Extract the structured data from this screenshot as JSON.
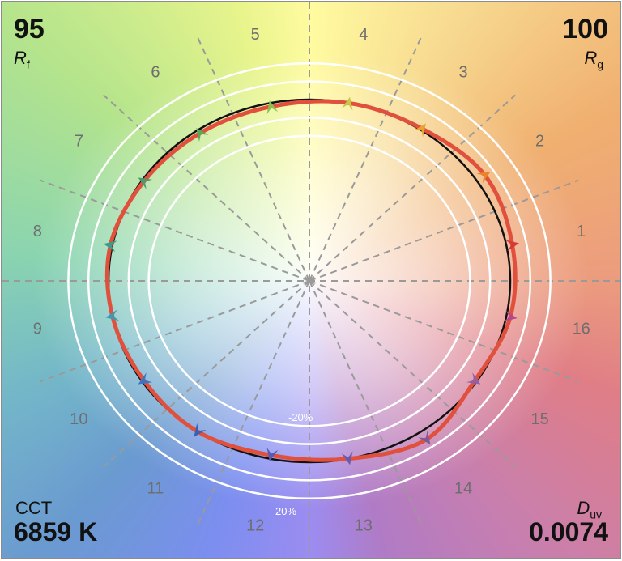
{
  "chart_data": {
    "type": "polar-vector-graphic",
    "metrics": {
      "rf_value": "95",
      "rf_label": "R",
      "rf_sub": "f",
      "rg_value": "100",
      "rg_label": "R",
      "rg_sub": "g",
      "cct_label": "CCT",
      "cct_value": "6859 K",
      "duv_label": "D",
      "duv_sub": "uv",
      "duv_value": "0.0074"
    },
    "hue_bins": [
      "1",
      "2",
      "3",
      "4",
      "5",
      "6",
      "7",
      "8",
      "9",
      "10",
      "11",
      "12",
      "13",
      "14",
      "15",
      "16"
    ],
    "ring_labels": {
      "inner": "-20%",
      "outer": "20%"
    },
    "reference_ratio": 1.0,
    "test_ratios": [
      1.03,
      1.05,
      1.01,
      1.0,
      0.98,
      0.98,
      0.99,
      1.01,
      1.0,
      0.99,
      1.0,
      0.98,
      1.0,
      1.05,
      0.99,
      1.02
    ],
    "arrow_colors": [
      "#d63a38",
      "#e9842c",
      "#e8a430",
      "#c8c848",
      "#8ac050",
      "#5aa85a",
      "#4a9c6c",
      "#3c9c8a",
      "#3c9ab4",
      "#3c74c4",
      "#3c60b0",
      "#5a5ab4",
      "#6a5aaa",
      "#7a5aa0",
      "#9260a8",
      "#b64888"
    ],
    "colors": {
      "test": "#e0503c",
      "reference": "#111111",
      "rings": "#ffffff",
      "grid": "#9a9a9a"
    }
  }
}
